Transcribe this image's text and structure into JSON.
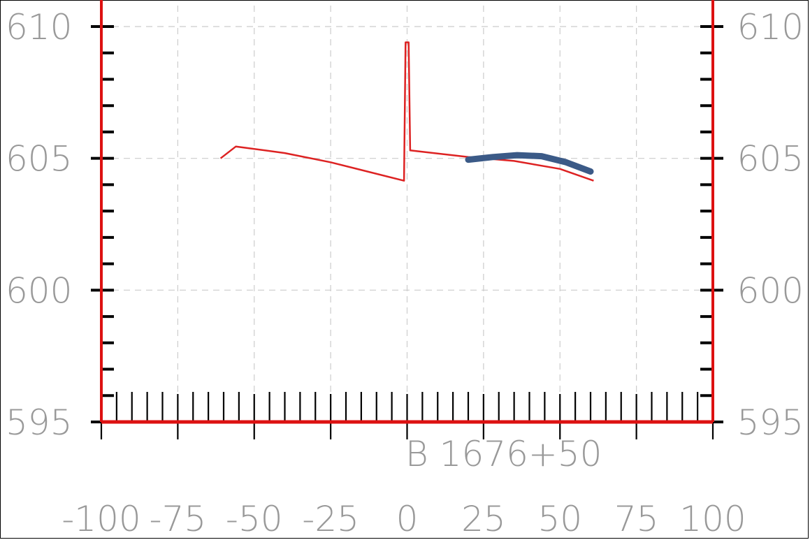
{
  "chart_data": {
    "type": "line",
    "xlim": [
      -100,
      100
    ],
    "ylim": [
      595,
      610
    ],
    "x_ticks": [
      -100,
      -75,
      -50,
      -25,
      0,
      25,
      50,
      75,
      100
    ],
    "x_tick_labels": [
      "-100",
      "-75",
      "-50",
      "-25",
      "0",
      "25",
      "50",
      "75",
      "100"
    ],
    "y_ticks": [
      595,
      600,
      605,
      610
    ],
    "y_tick_labels": [
      "595",
      "600",
      "605",
      "610"
    ],
    "station_label": "B 1676+50",
    "grid": true,
    "colors": {
      "axis": "#dd1111",
      "ground": "#dd2222",
      "design": "#3b5a87",
      "grid": "#cccccc",
      "ticks": "#000000",
      "labels": "#999999"
    },
    "series": [
      {
        "color": "#dd2222",
        "points": [
          [
            -61,
            605.0
          ],
          [
            -56,
            605.45
          ],
          [
            -40,
            605.2
          ],
          [
            -25,
            604.85
          ],
          [
            -1,
            604.15
          ],
          [
            -0.5,
            609.4
          ],
          [
            0.5,
            609.4
          ],
          [
            1,
            605.3
          ],
          [
            20,
            605.05
          ],
          [
            35,
            604.9
          ],
          [
            50,
            604.6
          ],
          [
            61,
            604.15
          ]
        ]
      },
      {
        "color": "#3b5a87",
        "points": [
          [
            20,
            604.95
          ],
          [
            28,
            605.05
          ],
          [
            36,
            605.12
          ],
          [
            44,
            605.08
          ],
          [
            52,
            604.85
          ],
          [
            60,
            604.5
          ]
        ]
      }
    ]
  }
}
